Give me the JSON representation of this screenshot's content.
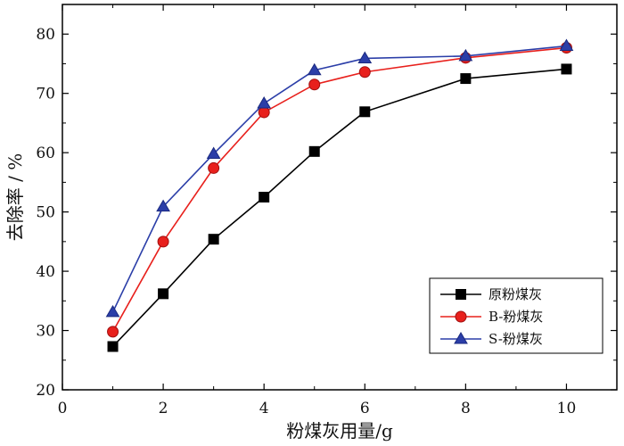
{
  "chart_data": {
    "type": "line",
    "title": "",
    "xlabel": "粉煤灰用量/g",
    "ylabel": "去除率 / %",
    "xlim": [
      0,
      11
    ],
    "ylim": [
      20,
      85
    ],
    "xticks": [
      0,
      2,
      4,
      6,
      8,
      10
    ],
    "yticks": [
      20,
      30,
      40,
      50,
      60,
      70,
      80
    ],
    "x": [
      1,
      2,
      3,
      4,
      5,
      6,
      8,
      10
    ],
    "legend_position": "bottom-right",
    "series": [
      {
        "name": "原粉煤灰",
        "marker": "square",
        "color": "#000000",
        "values": [
          27.3,
          36.2,
          45.4,
          52.5,
          60.2,
          66.9,
          72.5,
          74.1
        ]
      },
      {
        "name": "B-粉煤灰",
        "marker": "circle",
        "color": "#e8201c",
        "values": [
          29.8,
          45.0,
          57.4,
          66.8,
          71.5,
          73.6,
          76.0,
          77.7
        ]
      },
      {
        "name": "S-粉煤灰",
        "marker": "triangle",
        "color": "#2b3ea8",
        "values": [
          33.1,
          50.9,
          59.8,
          68.3,
          73.9,
          75.9,
          76.3,
          78.0
        ]
      }
    ]
  }
}
